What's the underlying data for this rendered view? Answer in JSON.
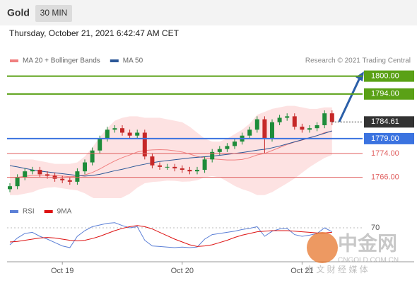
{
  "header": {
    "symbol": "Gold",
    "interval": "30 MIN",
    "timestamp": "Thursday, October 21, 2021 6:42:47 AM CET",
    "credit": "Research © 2021 Trading Central"
  },
  "watermark": {
    "logo": "中金网",
    "site": "CNGOLD.COM.CN",
    "tagline": "中 文 财 经 媒 体"
  },
  "chart_data": [
    {
      "type": "candlestick",
      "categories": [
        null,
        null,
        null,
        null,
        null,
        null,
        null,
        "Oct 19",
        null,
        null,
        null,
        null,
        null,
        null,
        null,
        null,
        null,
        null,
        null,
        null,
        null,
        null,
        null,
        "Oct 20",
        null,
        null,
        null,
        null,
        null,
        null,
        null,
        null,
        null,
        null,
        null,
        null,
        null,
        null,
        null,
        "Oct 21",
        null,
        null,
        null,
        null
      ],
      "open": [
        1762,
        1763,
        1766,
        1768,
        1768.5,
        1767,
        1766.5,
        1765.5,
        1765,
        1764.5,
        1768,
        1771,
        1775,
        1779,
        1782,
        1782.5,
        1781,
        1780,
        1781,
        1773,
        1770,
        1769.5,
        1769.5,
        1769,
        1768.5,
        1768,
        1768.5,
        1772,
        1774.5,
        1775.5,
        1776.5,
        1778,
        1780,
        1782,
        1785.5,
        1779,
        1784.5,
        1786,
        1786.5,
        1783,
        1782,
        1782.5,
        1783.5,
        1787.5
      ],
      "high": [
        1764,
        1767,
        1769,
        1769.5,
        1769.5,
        1768,
        1767.5,
        1766.5,
        1766,
        1769,
        1772,
        1776,
        1780,
        1783,
        1783.5,
        1783.5,
        1782,
        1782,
        1782,
        1774,
        1771,
        1770.5,
        1770.5,
        1770,
        1769.5,
        1769.5,
        1773,
        1775.5,
        1776.5,
        1777.5,
        1779,
        1781,
        1783,
        1786.5,
        1786.5,
        1785.5,
        1787,
        1787.5,
        1787.5,
        1784,
        1783.5,
        1784.5,
        1788.5,
        1788.5
      ],
      "low": [
        1761,
        1762,
        1765,
        1767,
        1766,
        1765.5,
        1764.5,
        1764,
        1763.5,
        1763.5,
        1767,
        1770,
        1774,
        1778,
        1781,
        1780,
        1779,
        1779,
        1772,
        1769,
        1768.5,
        1768.5,
        1768,
        1767.5,
        1767,
        1767,
        1767.5,
        1771,
        1773.5,
        1774.5,
        1775.5,
        1777,
        1779,
        1781,
        1774,
        1778,
        1783.5,
        1785,
        1782,
        1781,
        1781,
        1781.5,
        1782.5,
        1783.5
      ],
      "close": [
        1763,
        1766,
        1768,
        1768.5,
        1767,
        1766.5,
        1765.5,
        1765,
        1764.5,
        1768,
        1771,
        1775,
        1779,
        1782,
        1782.5,
        1781,
        1780,
        1781,
        1773,
        1770,
        1769.5,
        1769.5,
        1769,
        1768.5,
        1768,
        1768.5,
        1772,
        1774.5,
        1775.5,
        1776.5,
        1778,
        1780,
        1782,
        1785.5,
        1779,
        1784.5,
        1786,
        1786.5,
        1783,
        1782,
        1782.5,
        1783.5,
        1787.5,
        1784.61
      ],
      "up_color": "#1e8c3a",
      "down_color": "#c62828",
      "ylim": [
        1759,
        1803
      ],
      "series": [
        {
          "name": "MA 20 + Bollinger Bands",
          "color": "#f08080",
          "band_color": "#fde2e2",
          "values": [
            1766,
            1766,
            1766.3,
            1766.6,
            1766.7,
            1766.7,
            1766.6,
            1766.4,
            1766.2,
            1766.3,
            1766.8,
            1767.6,
            1768.8,
            1770.2,
            1771.5,
            1772.6,
            1773.5,
            1774.5,
            1775,
            1775.2,
            1775.3,
            1775.2,
            1774.9,
            1774.5,
            1773.8,
            1773,
            1772.5,
            1772.2,
            1772,
            1771.8,
            1771.8,
            1772,
            1772.6,
            1773.5,
            1774,
            1775,
            1776,
            1777,
            1777.8,
            1778.5,
            1779.2,
            1780,
            1781,
            1781.5
          ],
          "upper": [
            1772,
            1772,
            1772,
            1772,
            1771.5,
            1771,
            1770.5,
            1770.5,
            1770.5,
            1771,
            1773,
            1776,
            1779.5,
            1782.5,
            1785,
            1786,
            1786.5,
            1786.5,
            1786,
            1786,
            1786,
            1785.5,
            1785,
            1784.5,
            1783,
            1781,
            1779,
            1778,
            1778,
            1779,
            1780.5,
            1782,
            1784,
            1787,
            1788,
            1789,
            1789.5,
            1790,
            1790,
            1789.5,
            1789,
            1789,
            1789.5,
            1789.5
          ],
          "lower": [
            1760,
            1760,
            1760.5,
            1761,
            1762,
            1762.5,
            1762.7,
            1762.3,
            1761.9,
            1761.6,
            1760.6,
            1759.2,
            1758.1,
            1757.9,
            1758,
            1759.2,
            1760.5,
            1762.5,
            1764,
            1764.4,
            1764.6,
            1764.9,
            1764.8,
            1764.5,
            1764.6,
            1765,
            1766,
            1766.4,
            1766,
            1764.6,
            1763.1,
            1762,
            1761.2,
            1760,
            1760,
            1761,
            1762.5,
            1764,
            1765.6,
            1767.5,
            1769.4,
            1771,
            1772.5,
            1773.5
          ]
        },
        {
          "name": "MA 50",
          "color": "#2b5797",
          "values": [
            1769.9,
            1769.5,
            1769,
            1768.5,
            1768.1,
            1767.8,
            1767.5,
            1767.2,
            1766.9,
            1766.6,
            1766.4,
            1766.6,
            1767,
            1767.6,
            1768.2,
            1768.7,
            1769.3,
            1769.9,
            1770.4,
            1770.9,
            1771.3,
            1771.6,
            1771.9,
            1772.2,
            1772.5,
            1772.7,
            1772.9,
            1773.1,
            1773.4,
            1773.7,
            1774,
            1774.3,
            1774.7,
            1775.1,
            1775.4,
            1775.9,
            1776.5,
            1777.2,
            1777.9,
            1778.6,
            1779.3,
            1780,
            1780.8,
            1781.6
          ]
        }
      ],
      "levels": [
        {
          "value": 1800,
          "label": "1800.00",
          "color": "#5aa116",
          "style": "box"
        },
        {
          "value": 1794,
          "label": "1794.00",
          "color": "#5aa116",
          "style": "box"
        },
        {
          "value": 1784.61,
          "label": "1784.61",
          "color": "#333333",
          "style": "current"
        },
        {
          "value": 1779,
          "label": "1779.00",
          "color": "#3b73e0",
          "style": "box"
        },
        {
          "value": 1774,
          "label": "1774.00",
          "color": "#e06060",
          "style": "text"
        },
        {
          "value": 1766,
          "label": "1766.00",
          "color": "#e06060",
          "style": "text"
        }
      ]
    },
    {
      "type": "line",
      "ylim": [
        0,
        100
      ],
      "yticks": [
        70
      ],
      "series": [
        {
          "name": "RSI",
          "color": "#5b7fd6",
          "values": [
            40,
            52,
            60,
            62,
            55,
            50,
            44,
            38,
            35,
            55,
            65,
            72,
            75,
            78,
            79,
            74,
            70,
            72,
            48,
            38,
            37,
            36,
            35,
            36,
            35,
            36,
            50,
            58,
            60,
            62,
            64,
            67,
            69,
            72,
            55,
            64,
            68,
            69,
            58,
            55,
            57,
            60,
            70,
            63
          ]
        },
        {
          "name": "9MA",
          "color": "#dd1111",
          "values": [
            45,
            46,
            48,
            50,
            52,
            53,
            52,
            50,
            48,
            47,
            48,
            51,
            55,
            60,
            65,
            69,
            72,
            74,
            72,
            68,
            62,
            56,
            50,
            45,
            40,
            37,
            38,
            40,
            44,
            48,
            53,
            57,
            60,
            63,
            64,
            65,
            65,
            65,
            64,
            63,
            62,
            61,
            61,
            62
          ]
        }
      ]
    }
  ]
}
